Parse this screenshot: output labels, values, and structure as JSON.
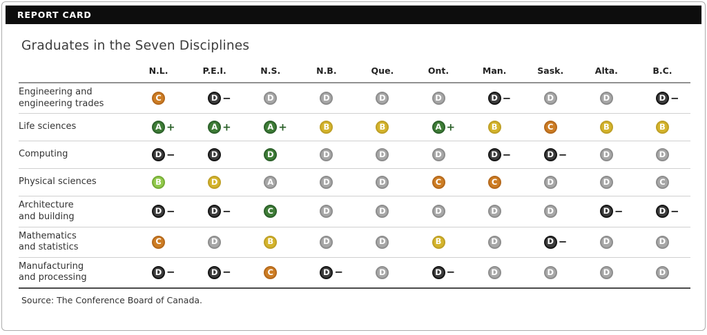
{
  "header": {
    "label": "REPORT CARD"
  },
  "chart_data": {
    "type": "table",
    "title": "Graduates in the Seven Disciplines",
    "columns": [
      "N.L.",
      "P.E.I.",
      "N.S.",
      "N.B.",
      "Que.",
      "Ont.",
      "Man.",
      "Sask.",
      "Alta.",
      "B.C."
    ],
    "rows": [
      {
        "label": "Engineering and\nengineering trades",
        "grades": [
          "C|orange",
          "D−|black",
          "D|gray",
          "D|gray",
          "D|gray",
          "D|gray",
          "D−|black",
          "D|gray",
          "D|gray",
          "D−|black"
        ]
      },
      {
        "label": "Life sciences",
        "grades": [
          "A+|green",
          "A+|green",
          "A+|green",
          "B|yellow",
          "B|yellow",
          "A+|green",
          "B|yellow",
          "C|orange",
          "B|yellow",
          "B|yellow"
        ]
      },
      {
        "label": "Computing",
        "grades": [
          "D−|black",
          "D|black",
          "D|green",
          "D|gray",
          "D|gray",
          "D|gray",
          "D−|black",
          "D−|black",
          "D|gray",
          "D|gray"
        ]
      },
      {
        "label": "Physical sciences",
        "grades": [
          "B|lightgreen",
          "D|yellow",
          "A|gray",
          "D|gray",
          "D|gray",
          "C|orange",
          "C|orange",
          "D|gray",
          "D|gray",
          "C|gray"
        ]
      },
      {
        "label": "Architecture\nand building",
        "grades": [
          "D−|black",
          "D−|black",
          "C|green",
          "D|gray",
          "D|gray",
          "D|gray",
          "D|gray",
          "D|gray",
          "D−|black",
          "D−|black"
        ]
      },
      {
        "label": "Mathematics\nand statistics",
        "grades": [
          "C|orange",
          "D|gray",
          "B|yellow",
          "D|gray",
          "D|gray",
          "B|yellow",
          "D|gray",
          "D−|black",
          "D|gray",
          "D|gray"
        ]
      },
      {
        "label": "Manufacturing\nand processing",
        "grades": [
          "D−|black",
          "D−|black",
          "C|orange",
          "D−|black",
          "D|gray",
          "D−|black",
          "D|gray",
          "D|gray",
          "D|gray",
          "D|gray"
        ]
      }
    ],
    "grade_scale": [
      "A+",
      "A",
      "B",
      "C",
      "D",
      "D−"
    ],
    "source": "Source: The Conference Board of Canada."
  },
  "colors": {
    "green": {
      "fill": "#3f7d37",
      "ring": "#2c612a"
    },
    "lightgreen": {
      "fill": "#92c94c",
      "ring": "#76ad36"
    },
    "yellow": {
      "fill": "#d4b42c",
      "ring": "#bfa026"
    },
    "orange": {
      "fill": "#cd7d24",
      "ring": "#b5691c"
    },
    "gray": {
      "fill": "#a7a7a7",
      "ring": "#8d8d8d"
    },
    "black": {
      "fill": "#3c3c3c",
      "ring": "#161616"
    }
  }
}
